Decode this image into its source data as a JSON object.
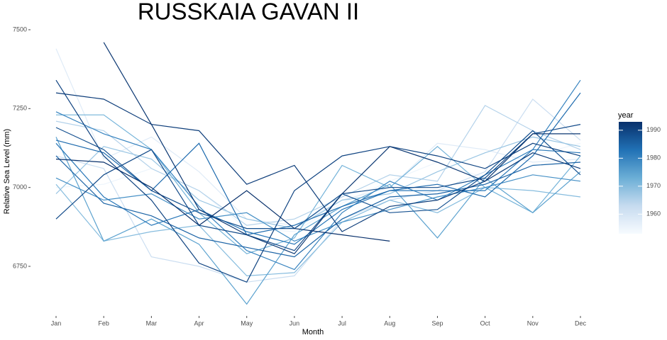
{
  "chart_data": {
    "type": "line",
    "title": "RUSSKAIA GAVAN II",
    "x_label": "Month",
    "y_label": "Relative Sea Level (mm)",
    "categories": [
      "Jan",
      "Feb",
      "Mar",
      "Apr",
      "May",
      "Jun",
      "Jul",
      "Aug",
      "Sep",
      "Oct",
      "Nov",
      "Dec"
    ],
    "ylim": [
      6600,
      7515
    ],
    "yticks": [
      6750,
      7000,
      7250,
      7500
    ],
    "grid": false,
    "legend_title": "year",
    "colorlim": [
      1953,
      1993
    ],
    "colorticks": [
      1960,
      1970,
      1980,
      1990
    ],
    "colorscale": [
      "#f7fbff",
      "#c6dbef",
      "#6baed6",
      "#2171b5",
      "#08306b"
    ],
    "series": [
      {
        "year": 1955,
        "values": [
          7000,
          7010,
          7060,
          6990,
          6870,
          6860,
          6950,
          7020,
          7080,
          7030,
          7100,
          7140
        ]
      },
      {
        "year": 1958,
        "values": [
          7440,
          7090,
          7160,
          7050,
          6900,
          6880,
          6960,
          7000,
          7140,
          7120,
          7080,
          7090
        ]
      },
      {
        "year": 1962,
        "values": [
          7100,
          7060,
          6780,
          6750,
          6700,
          6720,
          6900,
          6960,
          6990,
          7050,
          7280,
          7150
        ]
      },
      {
        "year": 1965,
        "values": [
          7210,
          7180,
          7060,
          6990,
          6880,
          6900,
          6970,
          7040,
          7020,
          7260,
          7180,
          7120
        ]
      },
      {
        "year": 1968,
        "values": [
          6980,
          7130,
          7090,
          6960,
          6900,
          6870,
          6960,
          6980,
          7050,
          7110,
          7160,
          7130
        ]
      },
      {
        "year": 1970,
        "values": [
          7010,
          6830,
          6860,
          6880,
          6720,
          6730,
          6890,
          6960,
          6920,
          7000,
          6990,
          6970
        ]
      },
      {
        "year": 1972,
        "values": [
          7230,
          7230,
          7120,
          6920,
          6790,
          6840,
          7070,
          7000,
          7130,
          7000,
          6920,
          7100
        ]
      },
      {
        "year": 1975,
        "values": [
          7160,
          6830,
          6900,
          6820,
          6630,
          6850,
          6940,
          7010,
          6840,
          7030,
          6920,
          7050
        ]
      },
      {
        "year": 1978,
        "values": [
          7030,
          6960,
          6980,
          6900,
          6920,
          6830,
          6890,
          6930,
          6970,
          7000,
          7040,
          7020
        ]
      },
      {
        "year": 1980,
        "values": [
          7240,
          7170,
          7120,
          6940,
          6800,
          6740,
          6920,
          7020,
          6960,
          7040,
          7120,
          7340
        ]
      },
      {
        "year": 1982,
        "values": [
          7140,
          6970,
          6880,
          6930,
          6860,
          6820,
          6930,
          6990,
          6990,
          6990,
          7120,
          7110
        ]
      },
      {
        "year": 1984,
        "values": [
          7150,
          7110,
          6990,
          7140,
          6850,
          6880,
          6940,
          6990,
          7010,
          6970,
          7100,
          7300
        ]
      },
      {
        "year": 1985,
        "values": [
          7100,
          6950,
          6910,
          6840,
          6810,
          6780,
          6900,
          6970,
          6980,
          7010,
          7070,
          7080
        ]
      },
      {
        "year": 1988,
        "values": [
          7190,
          7120,
          6990,
          6920,
          6870,
          6870,
          6980,
          6920,
          6930,
          7040,
          7180,
          7040
        ]
      },
      {
        "year": 1989,
        "values": [
          6900,
          7040,
          7120,
          6880,
          6850,
          6800,
          6980,
          7000,
          7000,
          7030,
          7170,
          7200
        ]
      },
      {
        "year": 1990,
        "values": [
          7340,
          7100,
          6960,
          6760,
          6700,
          6990,
          7100,
          7130,
          7100,
          7060,
          7140,
          7100
        ]
      },
      {
        "year": 1991,
        "values": [
          7300,
          7280,
          7200,
          7180,
          7010,
          7070,
          6860,
          6940,
          6960,
          7020,
          7110,
          7060
        ]
      },
      {
        "year": 1992,
        "values": [
          null,
          7460,
          7200,
          6930,
          6850,
          6790,
          6980,
          7130,
          7080,
          7020,
          7170,
          7170
        ]
      },
      {
        "year": 1993,
        "values": [
          7090,
          7080,
          7000,
          6880,
          6990,
          6870,
          6850,
          6830,
          null,
          null,
          null,
          null
        ]
      }
    ]
  }
}
